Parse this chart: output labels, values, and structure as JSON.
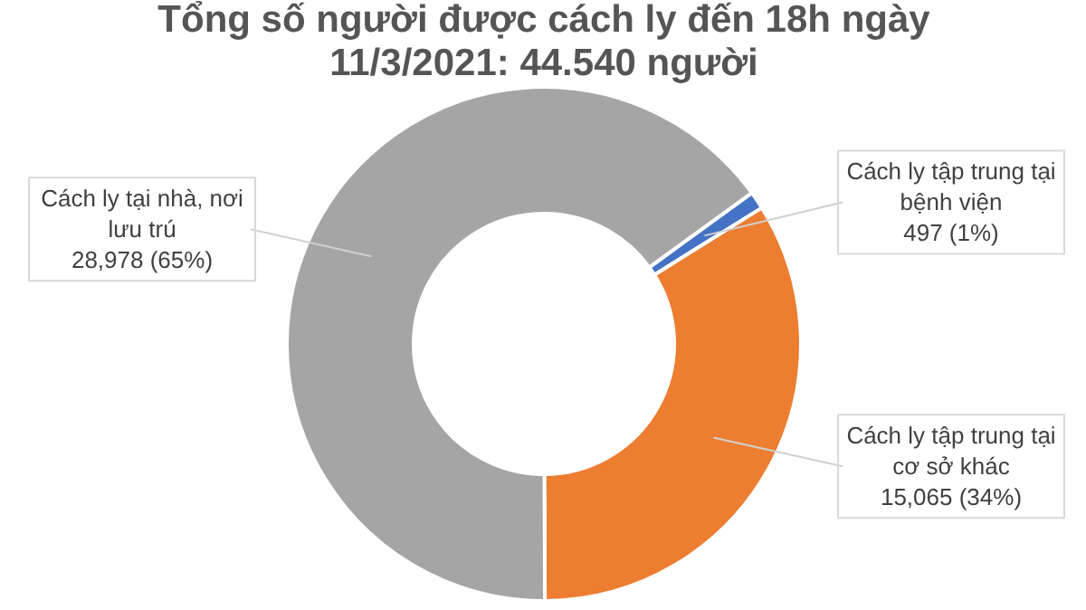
{
  "chart_data": {
    "type": "donut",
    "title": "Tổng số người được cách ly đến 18h ngày 11/3/2021: 44.540 người",
    "categories": [
      "Cách ly tập trung tại bệnh viện",
      "Cách ly tập trung tại cơ sở khác",
      "Cách ly tại nhà, nơi lưu trú"
    ],
    "values": [
      497,
      15065,
      28978
    ],
    "colors": [
      "#4472c4",
      "#ed7d31",
      "#a5a5a5"
    ],
    "value_labels": [
      "497 (1%)",
      "15,065 (34%)",
      "28,978 (65%)"
    ],
    "legend": false
  }
}
